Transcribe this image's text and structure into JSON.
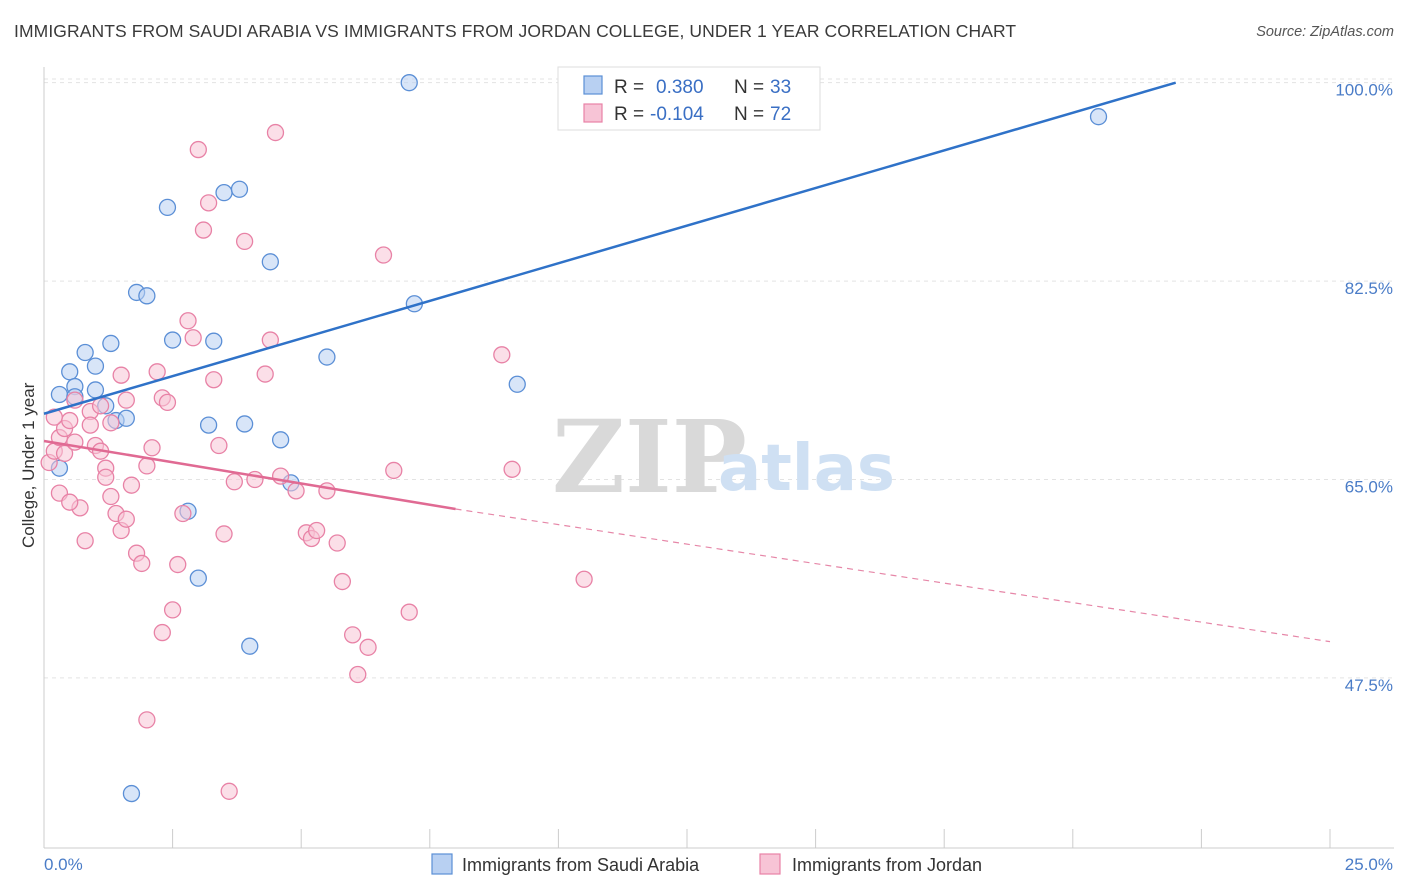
{
  "title": "IMMIGRANTS FROM SAUDI ARABIA VS IMMIGRANTS FROM JORDAN COLLEGE, UNDER 1 YEAR CORRELATION CHART",
  "source": "Source: ZipAtlas.com",
  "watermark": {
    "zip": "ZIP",
    "atlas": "atlas"
  },
  "colors": {
    "blue": "#5b8fd6",
    "blue_line": "#2f72c8",
    "pink": "#e882a6",
    "pink_line": "#e06a93",
    "blue_fill": "#b8d0f2",
    "pink_fill": "#f7c4d6"
  },
  "legend": {
    "rows": [
      {
        "r_label": "R =",
        "r_value": "0.380",
        "n_label": "N =",
        "n_value": "33"
      },
      {
        "r_label": "R =",
        "r_value": "-0.104",
        "n_label": "N =",
        "n_value": "72"
      }
    ]
  },
  "bottom_legend": [
    "Immigrants from Saudi Arabia",
    "Immigrants from Jordan"
  ],
  "chart_data": {
    "type": "scatter",
    "title": "IMMIGRANTS FROM SAUDI ARABIA VS IMMIGRANTS FROM JORDAN COLLEGE, UNDER 1 YEAR CORRELATION CHART",
    "xlabel": "",
    "ylabel": "College, Under 1 year",
    "xlim": [
      0,
      25
    ],
    "ylim": [
      32.5,
      102
    ],
    "x_tick_labels": [
      "0.0%",
      "25.0%"
    ],
    "y_ticks": [
      47.5,
      65.0,
      82.5,
      100.0
    ],
    "y_tick_labels": [
      "47.5%",
      "65.0%",
      "82.5%",
      "100.0%"
    ],
    "grid": true,
    "series": [
      {
        "name": "Immigrants from Saudi Arabia",
        "points": [
          [
            0.3,
            72.5
          ],
          [
            0.5,
            74.5
          ],
          [
            0.6,
            73.2
          ],
          [
            0.8,
            76.2
          ],
          [
            1.0,
            75.0
          ],
          [
            1.2,
            71.5
          ],
          [
            1.3,
            77.0
          ],
          [
            1.4,
            70.2
          ],
          [
            1.6,
            70.4
          ],
          [
            1.8,
            81.5
          ],
          [
            2.0,
            81.2
          ],
          [
            2.4,
            89.0
          ],
          [
            2.5,
            77.3
          ],
          [
            2.8,
            62.2
          ],
          [
            3.0,
            56.3
          ],
          [
            3.2,
            69.8
          ],
          [
            3.3,
            77.2
          ],
          [
            3.5,
            90.3
          ],
          [
            3.8,
            90.6
          ],
          [
            3.9,
            69.9
          ],
          [
            4.0,
            50.3
          ],
          [
            4.4,
            84.2
          ],
          [
            4.6,
            68.5
          ],
          [
            4.8,
            64.7
          ],
          [
            5.5,
            75.8
          ],
          [
            7.1,
            100.0
          ],
          [
            7.2,
            80.5
          ],
          [
            9.2,
            73.4
          ],
          [
            20.5,
            97.0
          ],
          [
            1.7,
            37.3
          ],
          [
            0.6,
            72.3
          ],
          [
            1.0,
            72.9
          ],
          [
            0.3,
            66.0
          ]
        ],
        "trend": {
          "x": [
            0,
            22
          ],
          "y": [
            70.8,
            100.0
          ]
        }
      },
      {
        "name": "Immigrants from Jordan",
        "points": [
          [
            0.1,
            66.5
          ],
          [
            0.2,
            67.5
          ],
          [
            0.3,
            68.7
          ],
          [
            0.4,
            69.5
          ],
          [
            0.5,
            70.2
          ],
          [
            0.6,
            72.0
          ],
          [
            0.7,
            62.5
          ],
          [
            0.8,
            59.6
          ],
          [
            0.9,
            71.0
          ],
          [
            1.0,
            68.0
          ],
          [
            1.1,
            67.5
          ],
          [
            1.2,
            66.0
          ],
          [
            1.3,
            63.5
          ],
          [
            1.4,
            62.0
          ],
          [
            1.5,
            60.5
          ],
          [
            1.6,
            61.5
          ],
          [
            1.7,
            64.5
          ],
          [
            1.8,
            58.5
          ],
          [
            1.9,
            57.6
          ],
          [
            2.0,
            66.2
          ],
          [
            2.1,
            67.8
          ],
          [
            2.2,
            74.5
          ],
          [
            2.3,
            72.2
          ],
          [
            2.4,
            71.8
          ],
          [
            2.5,
            53.5
          ],
          [
            2.6,
            57.5
          ],
          [
            2.7,
            62.0
          ],
          [
            2.8,
            79.0
          ],
          [
            2.9,
            77.5
          ],
          [
            3.0,
            94.1
          ],
          [
            3.1,
            87.0
          ],
          [
            3.2,
            89.4
          ],
          [
            3.3,
            73.8
          ],
          [
            3.4,
            68.0
          ],
          [
            3.5,
            60.2
          ],
          [
            3.6,
            37.5
          ],
          [
            3.7,
            64.8
          ],
          [
            3.9,
            86.0
          ],
          [
            4.1,
            65.0
          ],
          [
            4.3,
            74.3
          ],
          [
            4.4,
            77.3
          ],
          [
            4.6,
            65.3
          ],
          [
            4.9,
            64.0
          ],
          [
            5.1,
            60.3
          ],
          [
            5.2,
            59.8
          ],
          [
            5.5,
            64.0
          ],
          [
            5.7,
            59.4
          ],
          [
            5.8,
            56.0
          ],
          [
            6.1,
            47.8
          ],
          [
            6.3,
            50.2
          ],
          [
            6.6,
            84.8
          ],
          [
            6.8,
            65.8
          ],
          [
            7.1,
            53.3
          ],
          [
            8.9,
            76.0
          ],
          [
            9.1,
            65.9
          ],
          [
            10.5,
            56.2
          ],
          [
            0.4,
            67.3
          ],
          [
            0.6,
            68.3
          ],
          [
            0.9,
            69.8
          ],
          [
            1.1,
            71.5
          ],
          [
            1.3,
            70.0
          ],
          [
            1.5,
            74.2
          ],
          [
            0.2,
            70.5
          ],
          [
            0.3,
            63.8
          ],
          [
            2.0,
            43.8
          ],
          [
            2.3,
            51.5
          ],
          [
            4.5,
            95.6
          ],
          [
            6.0,
            51.3
          ],
          [
            5.3,
            60.5
          ],
          [
            1.6,
            72.0
          ],
          [
            0.5,
            63.0
          ],
          [
            1.2,
            65.2
          ]
        ],
        "trend": {
          "x": [
            0,
            8
          ],
          "y": [
            68.4,
            62.4
          ]
        },
        "trend_extension": {
          "x": [
            8,
            25
          ],
          "y": [
            62.4,
            50.7
          ]
        }
      }
    ]
  }
}
